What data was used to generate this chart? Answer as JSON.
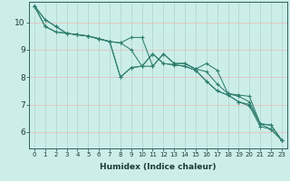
{
  "xlabel": "Humidex (Indice chaleur)",
  "background_color": "#cceee8",
  "line_color": "#2e7d6e",
  "grid_color_v": "#aad4cc",
  "grid_color_h": "#e8b8b8",
  "xlim": [
    -0.5,
    23.5
  ],
  "ylim": [
    5.4,
    10.75
  ],
  "yticks": [
    6,
    7,
    8,
    9,
    10
  ],
  "xticks": [
    0,
    1,
    2,
    3,
    4,
    5,
    6,
    7,
    8,
    9,
    10,
    11,
    12,
    13,
    14,
    15,
    16,
    17,
    18,
    19,
    20,
    21,
    22,
    23
  ],
  "series": [
    [
      10.6,
      10.1,
      9.85,
      9.6,
      9.55,
      9.5,
      9.4,
      9.3,
      9.25,
      9.45,
      9.45,
      8.4,
      8.85,
      8.5,
      8.5,
      8.3,
      8.5,
      8.25,
      7.4,
      7.35,
      7.3,
      6.3,
      6.25,
      5.7
    ],
    [
      10.6,
      10.1,
      9.85,
      9.6,
      9.55,
      9.5,
      9.4,
      9.3,
      9.25,
      9.0,
      8.4,
      8.4,
      8.85,
      8.5,
      8.5,
      8.3,
      8.2,
      7.75,
      7.4,
      7.3,
      7.1,
      6.3,
      6.25,
      5.7
    ],
    [
      10.6,
      9.85,
      9.65,
      9.6,
      9.55,
      9.5,
      9.4,
      9.3,
      8.0,
      8.35,
      8.4,
      8.85,
      8.5,
      8.45,
      8.4,
      8.25,
      7.85,
      7.5,
      7.35,
      7.1,
      7.0,
      6.3,
      6.1,
      5.7
    ],
    [
      10.6,
      9.85,
      9.65,
      9.6,
      9.55,
      9.5,
      9.4,
      9.3,
      8.0,
      8.35,
      8.4,
      8.85,
      8.5,
      8.45,
      8.4,
      8.25,
      7.85,
      7.5,
      7.35,
      7.1,
      6.95,
      6.2,
      6.1,
      5.7
    ]
  ]
}
